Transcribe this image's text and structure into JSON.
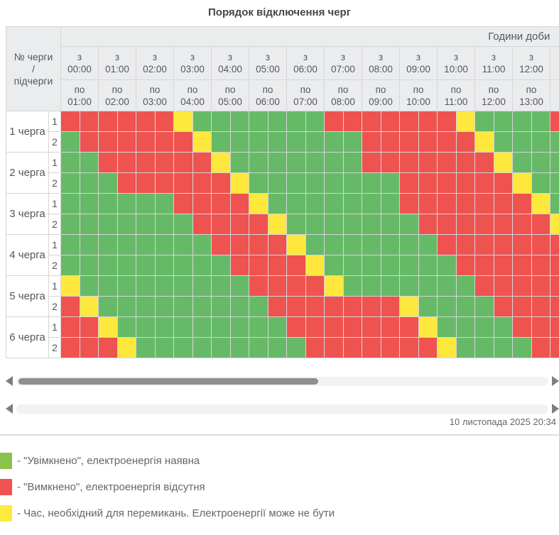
{
  "title": "Порядок відключення черг",
  "header": {
    "corner_lines": [
      "№ черги",
      "/",
      "підчерги"
    ],
    "hours_title": "Години доби",
    "columns": [
      {
        "from": "з 00:00",
        "to": "по 01:00"
      },
      {
        "from": "з 01:00",
        "to": "по 02:00"
      },
      {
        "from": "з 02:00",
        "to": "по 03:00"
      },
      {
        "from": "з 03:00",
        "to": "по 04:00"
      },
      {
        "from": "з 04:00",
        "to": "по 05:00"
      },
      {
        "from": "з 05:00",
        "to": "по 06:00"
      },
      {
        "from": "з 06:00",
        "to": "по 07:00"
      },
      {
        "from": "з 07:00",
        "to": "по 08:00"
      },
      {
        "from": "з 08:00",
        "to": "по 09:00"
      },
      {
        "from": "з 09:00",
        "to": "по 10:00"
      },
      {
        "from": "з 10:00",
        "to": "по 11:00"
      },
      {
        "from": "з 11:00",
        "to": "по 12:00"
      },
      {
        "from": "з 12:00",
        "to": "по 13:00"
      }
    ]
  },
  "grid": {
    "legend_codes": {
      "G": "увімкнено",
      "R": "вимкнено",
      "Y": "перемикання"
    },
    "rows": [
      {
        "queue": "1 черга",
        "sub": "1",
        "cells": "RRRRRRYGGGGGGGRRRRRRRYGGGGR"
      },
      {
        "queue": "1 черга",
        "sub": "2",
        "cells": "GRRRRRRYGGGGGGGGRRRRRRYGGGG"
      },
      {
        "queue": "2 черга",
        "sub": "1",
        "cells": "GGRRRRRRYGGGGGGGRRRRRRRYGGG"
      },
      {
        "queue": "2 черга",
        "sub": "2",
        "cells": "GGGRRRRRRYGGGGGGGGRRRRRRYGG"
      },
      {
        "queue": "3 черга",
        "sub": "1",
        "cells": "GGGGGGRRRRYGGGGGGGRRRRRRRYG"
      },
      {
        "queue": "3 черга",
        "sub": "2",
        "cells": "GGGGGGGRRRRYGGGGGGGRRRRRRRY"
      },
      {
        "queue": "4 черга",
        "sub": "1",
        "cells": "GGGGGGGGRRRRYGGGGGGGRRRRRRR"
      },
      {
        "queue": "4 черга",
        "sub": "2",
        "cells": "GGGGGGGGGRRRRYGGGGGGGRRRRRR"
      },
      {
        "queue": "5 черга",
        "sub": "1",
        "cells": "YGGGGGGGGGRRRRYGGGGGGGRRRRR"
      },
      {
        "queue": "5 черга",
        "sub": "2",
        "cells": "RYGGGGGGGGGRRRRRRRYGGGGRRRR"
      },
      {
        "queue": "6 черга",
        "sub": "1",
        "cells": "RRYGGGGGGGGGRRRRRRRYGGGGRRR"
      },
      {
        "queue": "6 черга",
        "sub": "2",
        "cells": "RRRYGGGGGGGGGRRRRRRRYGGGGRR"
      }
    ]
  },
  "colors": {
    "G": "#66ba67",
    "R": "#ee5350",
    "Y": "#ffe83d",
    "header_bg": "#ebecee",
    "border": "#d5d5d5",
    "scrollbar_thumb": "#8f8f8f",
    "legend_green": "#8cc24c",
    "legend_red": "#ee5350",
    "legend_yellow": "#ffe93c"
  },
  "scrollbars": [
    {
      "has_thumb": true
    },
    {
      "has_thumb": false
    }
  ],
  "timestamp": "10 листопада 2025 20:34",
  "legend": [
    {
      "color": "#8cc24c",
      "label": "- \"Увімкнено\", електроенергія наявна"
    },
    {
      "color": "#ee5350",
      "label": "- \"Вимкнено\", електроенергія відсутня"
    },
    {
      "color": "#ffe93c",
      "label": "- Час, необхідний для перемикань. Електроенергії може не бути"
    }
  ]
}
